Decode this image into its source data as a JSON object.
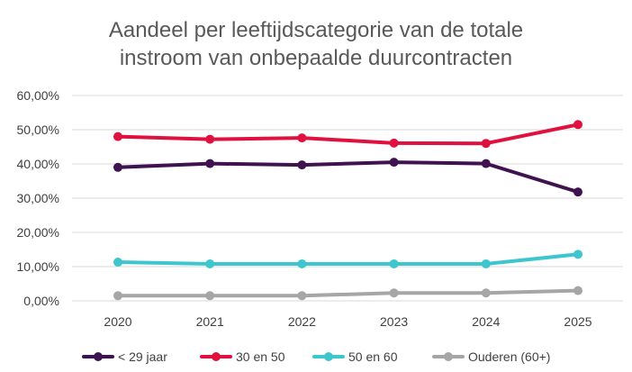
{
  "chart_data": {
    "type": "line",
    "title_line1": "Aandeel per leeftijdscategorie van de totale",
    "title_line2": "instroom van onbepaalde duurcontracten",
    "categories": [
      "2020",
      "2021",
      "2022",
      "2023",
      "2024",
      "2025"
    ],
    "y_ticks": [
      "0,00%",
      "10,00%",
      "20,00%",
      "30,00%",
      "40,00%",
      "50,00%",
      "60,00%"
    ],
    "ylim": [
      0,
      60
    ],
    "grid": true,
    "legend_position": "bottom",
    "series": [
      {
        "name": "< 29 jaar",
        "color": "#3f1250",
        "values": [
          39.0,
          40.1,
          39.7,
          40.5,
          40.1,
          31.8
        ]
      },
      {
        "name": "30 en 50",
        "color": "#e0103f",
        "values": [
          48.0,
          47.2,
          47.6,
          46.1,
          46.0,
          51.5
        ]
      },
      {
        "name": "50 en 60",
        "color": "#3ec6cf",
        "values": [
          11.3,
          10.8,
          10.8,
          10.8,
          10.8,
          13.6
        ]
      },
      {
        "name": "Ouderen (60+)",
        "color": "#a6a6a6",
        "values": [
          1.5,
          1.5,
          1.5,
          2.3,
          2.3,
          3.0
        ]
      }
    ]
  }
}
